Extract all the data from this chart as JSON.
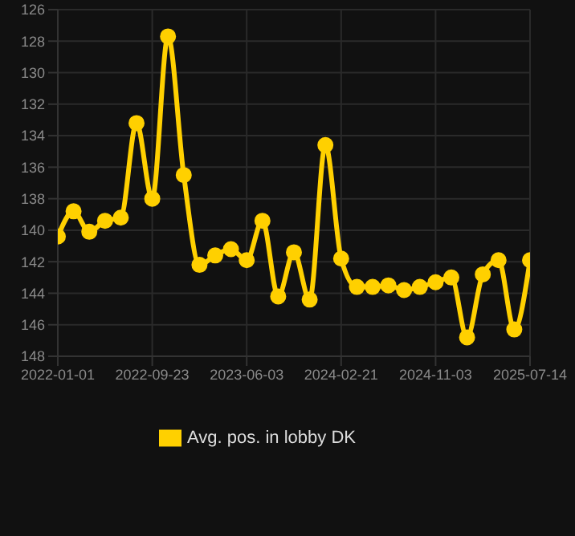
{
  "chart_data": {
    "type": "line",
    "categories": [
      "2022-01-01",
      null,
      null,
      null,
      null,
      null,
      "2022-09-23",
      null,
      null,
      null,
      null,
      null,
      "2023-06-03",
      null,
      null,
      null,
      null,
      null,
      "2024-02-21",
      null,
      null,
      null,
      null,
      null,
      "2024-11-03",
      null,
      null,
      null,
      null,
      null,
      "2025-07-14"
    ],
    "series": [
      {
        "name": "Avg. pos. in lobby DK",
        "color": "#ffd000",
        "values": [
          140.4,
          138.8,
          140.1,
          139.4,
          139.2,
          133.2,
          138.0,
          127.7,
          136.5,
          142.2,
          141.6,
          141.2,
          141.9,
          139.4,
          144.2,
          141.4,
          144.4,
          134.6,
          141.8,
          143.6,
          143.6,
          143.5,
          143.8,
          143.6,
          143.3,
          143.0,
          146.8,
          142.8,
          141.9,
          146.3,
          141.9
        ]
      }
    ],
    "ylim": [
      148,
      126
    ],
    "yticks": [
      126,
      128,
      130,
      132,
      134,
      136,
      138,
      140,
      142,
      144,
      146,
      148
    ],
    "grid": true,
    "legend": "bottom",
    "marker": "circle",
    "line_style": "solid"
  }
}
